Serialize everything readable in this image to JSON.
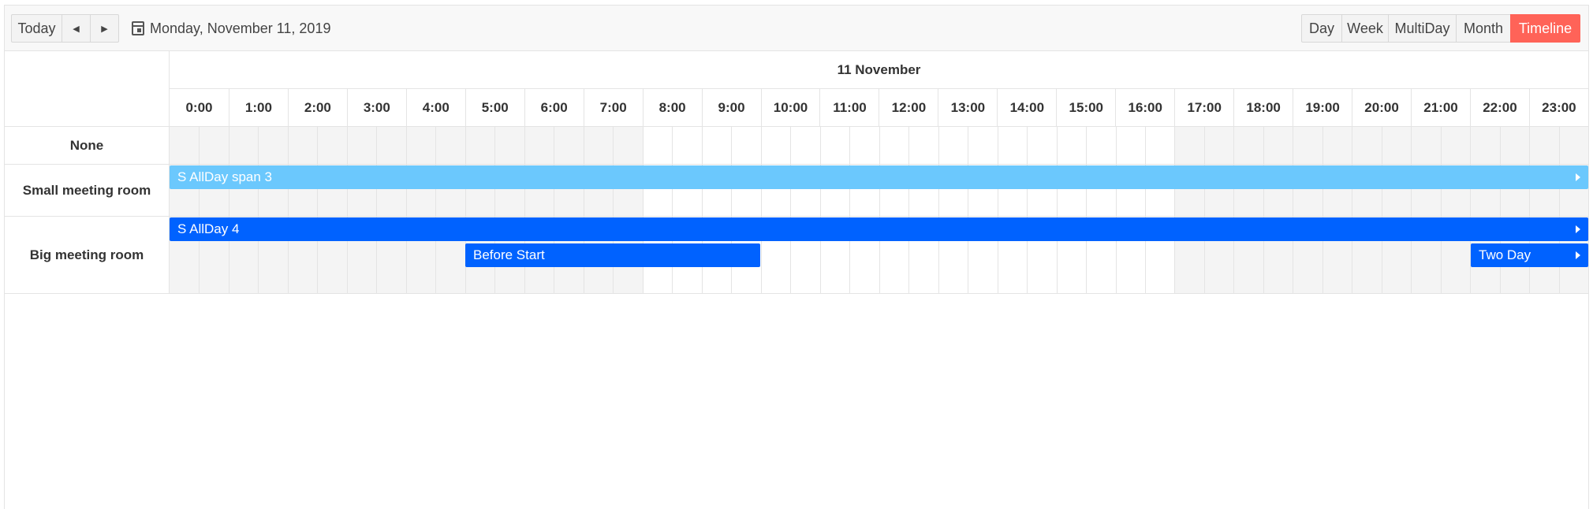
{
  "toolbar": {
    "today_label": "Today",
    "prev_icon": "triangle-left",
    "next_icon": "triangle-right",
    "date_label": "Monday, November 11, 2019",
    "views": [
      {
        "label": "Day",
        "active": false
      },
      {
        "label": "Week",
        "active": false
      },
      {
        "label": "MultiDay",
        "active": false
      },
      {
        "label": "Month",
        "active": false
      },
      {
        "label": "Timeline",
        "active": true
      }
    ]
  },
  "timeline": {
    "date_header": "11 November",
    "hours": [
      "0:00",
      "1:00",
      "2:00",
      "3:00",
      "4:00",
      "5:00",
      "6:00",
      "7:00",
      "8:00",
      "9:00",
      "10:00",
      "11:00",
      "12:00",
      "13:00",
      "14:00",
      "15:00",
      "16:00",
      "17:00",
      "18:00",
      "19:00",
      "20:00",
      "21:00",
      "22:00",
      "23:00"
    ],
    "work_hours": {
      "start": 8,
      "end": 17
    }
  },
  "resources": [
    {
      "name": "None"
    },
    {
      "name": "Small meeting room"
    },
    {
      "name": "Big meeting room"
    }
  ],
  "events": [
    {
      "title": "S AllDay span 3",
      "resource": 1,
      "start_hour": 0,
      "end_hour": 24,
      "color": "#6bc8fd",
      "continues": true
    },
    {
      "title": "S AllDay 4",
      "resource": 2,
      "start_hour": 0,
      "end_hour": 24,
      "color": "#0062ff",
      "continues": true
    },
    {
      "title": "Before Start",
      "resource": 2,
      "start_hour": 5,
      "end_hour": 10,
      "color": "#0062ff",
      "continues": false
    },
    {
      "title": "Two Day",
      "resource": 2,
      "start_hour": 22,
      "end_hour": 24,
      "color": "#0062ff",
      "continues": true
    }
  ]
}
